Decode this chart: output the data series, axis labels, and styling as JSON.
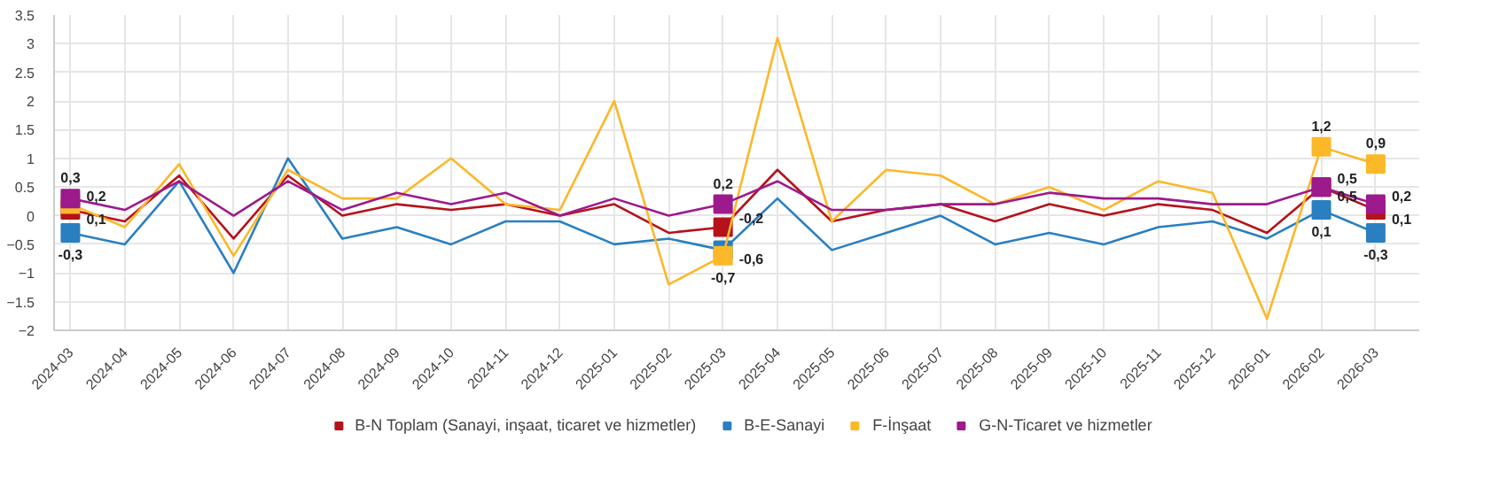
{
  "chart_data": {
    "type": "line",
    "categories": [
      "2024-03",
      "2024-04",
      "2024-05",
      "2024-06",
      "2024-07",
      "2024-08",
      "2024-09",
      "2024-10",
      "2024-11",
      "2024-12",
      "2025-01",
      "2025-02",
      "2025-03",
      "2025-04",
      "2025-05",
      "2025-06",
      "2025-07",
      "2025-08",
      "2025-09",
      "2025-10",
      "2025-11",
      "2025-12",
      "2026-01",
      "2026-02",
      "2026-03"
    ],
    "series": [
      {
        "name": "B-N Toplam (Sanayi, inşaat, ticaret ve hizmetler)",
        "color": "#b5121b",
        "values": [
          0.1,
          -0.1,
          0.7,
          -0.4,
          0.7,
          0.0,
          0.2,
          0.1,
          0.2,
          0.0,
          0.2,
          -0.3,
          -0.2,
          0.8,
          -0.1,
          0.1,
          0.2,
          -0.1,
          0.2,
          0.0,
          0.2,
          0.1,
          -0.3,
          0.5,
          0.1
        ],
        "value_labels": [
          "0,1",
          null,
          null,
          null,
          null,
          null,
          null,
          null,
          null,
          null,
          null,
          null,
          "-0,2",
          null,
          null,
          null,
          null,
          null,
          null,
          null,
          null,
          null,
          null,
          "0,5",
          "0,1"
        ]
      },
      {
        "name": "B-E-Sanayi",
        "color": "#2a7fc1",
        "values": [
          -0.3,
          -0.5,
          0.6,
          -1.0,
          1.0,
          -0.4,
          -0.2,
          -0.5,
          -0.1,
          -0.1,
          -0.5,
          -0.4,
          -0.6,
          0.3,
          -0.6,
          -0.3,
          0.0,
          -0.5,
          -0.3,
          -0.5,
          -0.2,
          -0.1,
          -0.4,
          0.1,
          -0.3
        ],
        "value_labels": [
          "-0,3",
          null,
          null,
          null,
          null,
          null,
          null,
          null,
          null,
          null,
          null,
          null,
          "-0,6",
          null,
          null,
          null,
          null,
          null,
          null,
          null,
          null,
          null,
          null,
          "0,1",
          "-0,3"
        ]
      },
      {
        "name": "F-İnşaat",
        "color": "#fbb829",
        "values": [
          0.2,
          -0.2,
          0.9,
          -0.7,
          0.8,
          0.3,
          0.3,
          1.0,
          0.2,
          0.1,
          2.0,
          -1.2,
          -0.7,
          3.1,
          -0.1,
          0.8,
          0.7,
          0.2,
          0.5,
          0.1,
          0.6,
          0.4,
          -1.8,
          1.2,
          0.9
        ],
        "value_labels": [
          "0,2",
          null,
          null,
          null,
          null,
          null,
          null,
          null,
          null,
          null,
          null,
          null,
          "-0,7",
          null,
          null,
          null,
          null,
          null,
          null,
          null,
          null,
          null,
          null,
          "1,2",
          "0,9"
        ]
      },
      {
        "name": "G-N-Ticaret ve hizmetler",
        "color": "#9c1a8c",
        "values": [
          0.3,
          0.1,
          0.6,
          0.0,
          0.6,
          0.1,
          0.4,
          0.2,
          0.4,
          0.0,
          0.3,
          0.0,
          0.2,
          0.6,
          0.1,
          0.1,
          0.2,
          0.2,
          0.4,
          0.3,
          0.3,
          0.2,
          0.2,
          0.5,
          0.2
        ],
        "value_labels": [
          "0,3",
          null,
          null,
          null,
          null,
          null,
          null,
          null,
          null,
          null,
          null,
          null,
          "0,2",
          null,
          null,
          null,
          null,
          null,
          null,
          null,
          null,
          null,
          null,
          "0,5",
          "0,2"
        ]
      }
    ],
    "ylim": [
      -2,
      3.5
    ],
    "yticks": [
      -2,
      -1.5,
      -1,
      -0.5,
      0,
      0.5,
      1,
      1.5,
      2,
      2.5,
      3,
      3.5
    ],
    "grid": true,
    "legend": "bottom",
    "line_style": "solid"
  }
}
